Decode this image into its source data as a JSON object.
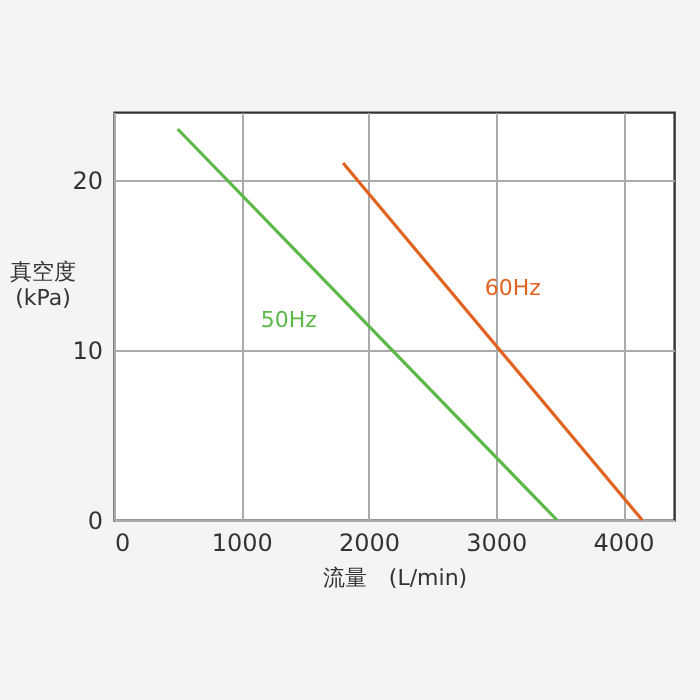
{
  "chart_data": {
    "type": "line",
    "xlabel": "流量　(L/min)",
    "ylabel": "真空度\n(kPa)",
    "series": [
      {
        "name": "50Hz",
        "color": "#5cb848",
        "x": [
          500,
          3480
        ],
        "values": [
          23,
          0
        ]
      },
      {
        "name": "60Hz",
        "color": "#e2621f",
        "x": [
          1800,
          4150
        ],
        "values": [
          21,
          0
        ]
      }
    ],
    "xlim": [
      0,
      4400
    ],
    "xticks": [
      0,
      1000,
      2000,
      3000,
      4000
    ],
    "ylim": [
      0,
      24
    ],
    "yticks": [
      0,
      10,
      20
    ],
    "grid": true
  }
}
